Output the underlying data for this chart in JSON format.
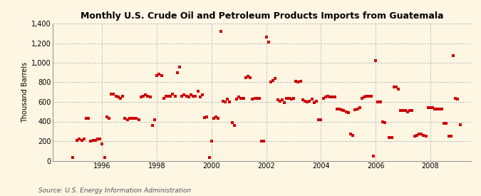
{
  "title": "Monthly U.S. Crude Oil and Petroleum Products Imports from Guatemala",
  "ylabel": "Thousand Barrels",
  "source": "Source: U.S. Energy Information Administration",
  "background_color": "#fdf6e3",
  "plot_bg_color": "#fdf6e3",
  "marker_color": "#cc0000",
  "marker_size": 3,
  "ylim": [
    0,
    1400
  ],
  "yticks": [
    0,
    200,
    400,
    600,
    800,
    1000,
    1200,
    1400
  ],
  "xlim_start": 1994.2,
  "xlim_end": 2009.5,
  "xticks": [
    1996,
    1998,
    2000,
    2002,
    2004,
    2006,
    2008
  ],
  "data": [
    [
      1994.9167,
      30
    ],
    [
      1995.0833,
      210
    ],
    [
      1995.1667,
      220
    ],
    [
      1995.25,
      210
    ],
    [
      1995.3333,
      220
    ],
    [
      1995.4167,
      430
    ],
    [
      1995.5,
      430
    ],
    [
      1995.5833,
      200
    ],
    [
      1995.6667,
      210
    ],
    [
      1995.75,
      210
    ],
    [
      1995.8333,
      220
    ],
    [
      1995.9167,
      220
    ],
    [
      1996.0,
      170
    ],
    [
      1996.0833,
      30
    ],
    [
      1996.1667,
      450
    ],
    [
      1996.25,
      430
    ],
    [
      1996.3333,
      680
    ],
    [
      1996.4167,
      680
    ],
    [
      1996.5,
      660
    ],
    [
      1996.5833,
      650
    ],
    [
      1996.6667,
      640
    ],
    [
      1996.75,
      660
    ],
    [
      1996.8333,
      430
    ],
    [
      1996.9167,
      420
    ],
    [
      1997.0,
      430
    ],
    [
      1997.0833,
      430
    ],
    [
      1997.1667,
      430
    ],
    [
      1997.25,
      430
    ],
    [
      1997.3333,
      420
    ],
    [
      1997.4167,
      650
    ],
    [
      1997.5,
      660
    ],
    [
      1997.5833,
      670
    ],
    [
      1997.6667,
      660
    ],
    [
      1997.75,
      650
    ],
    [
      1997.8333,
      360
    ],
    [
      1997.9167,
      420
    ],
    [
      1998.0,
      870
    ],
    [
      1998.0833,
      880
    ],
    [
      1998.1667,
      870
    ],
    [
      1998.25,
      640
    ],
    [
      1998.3333,
      660
    ],
    [
      1998.4167,
      660
    ],
    [
      1998.5,
      660
    ],
    [
      1998.5833,
      680
    ],
    [
      1998.6667,
      660
    ],
    [
      1998.75,
      900
    ],
    [
      1998.8333,
      960
    ],
    [
      1998.9167,
      660
    ],
    [
      1999.0,
      670
    ],
    [
      1999.0833,
      660
    ],
    [
      1999.1667,
      650
    ],
    [
      1999.25,
      670
    ],
    [
      1999.3333,
      660
    ],
    [
      1999.4167,
      660
    ],
    [
      1999.5,
      710
    ],
    [
      1999.5833,
      650
    ],
    [
      1999.6667,
      670
    ],
    [
      1999.75,
      440
    ],
    [
      1999.8333,
      450
    ],
    [
      1999.9167,
      30
    ],
    [
      2000.0,
      200
    ],
    [
      2000.0833,
      430
    ],
    [
      2000.1667,
      450
    ],
    [
      2000.25,
      430
    ],
    [
      2000.3333,
      1320
    ],
    [
      2000.4167,
      610
    ],
    [
      2000.5,
      600
    ],
    [
      2000.5833,
      630
    ],
    [
      2000.6667,
      600
    ],
    [
      2000.75,
      390
    ],
    [
      2000.8333,
      360
    ],
    [
      2000.9167,
      630
    ],
    [
      2001.0,
      650
    ],
    [
      2001.0833,
      640
    ],
    [
      2001.1667,
      640
    ],
    [
      2001.25,
      850
    ],
    [
      2001.3333,
      860
    ],
    [
      2001.4167,
      850
    ],
    [
      2001.5,
      630
    ],
    [
      2001.5833,
      640
    ],
    [
      2001.6667,
      640
    ],
    [
      2001.75,
      640
    ],
    [
      2001.8333,
      200
    ],
    [
      2001.9167,
      200
    ],
    [
      2002.0,
      1260
    ],
    [
      2002.0833,
      1210
    ],
    [
      2002.1667,
      800
    ],
    [
      2002.25,
      820
    ],
    [
      2002.3333,
      840
    ],
    [
      2002.4167,
      620
    ],
    [
      2002.5,
      610
    ],
    [
      2002.5833,
      620
    ],
    [
      2002.6667,
      590
    ],
    [
      2002.75,
      640
    ],
    [
      2002.8333,
      640
    ],
    [
      2002.9167,
      630
    ],
    [
      2003.0,
      640
    ],
    [
      2003.0833,
      810
    ],
    [
      2003.1667,
      800
    ],
    [
      2003.25,
      810
    ],
    [
      2003.3333,
      620
    ],
    [
      2003.4167,
      610
    ],
    [
      2003.5,
      600
    ],
    [
      2003.5833,
      610
    ],
    [
      2003.6667,
      630
    ],
    [
      2003.75,
      590
    ],
    [
      2003.8333,
      610
    ],
    [
      2003.9167,
      420
    ],
    [
      2004.0,
      420
    ],
    [
      2004.0833,
      640
    ],
    [
      2004.1667,
      650
    ],
    [
      2004.25,
      660
    ],
    [
      2004.3333,
      650
    ],
    [
      2004.4167,
      650
    ],
    [
      2004.5,
      650
    ],
    [
      2004.5833,
      530
    ],
    [
      2004.6667,
      530
    ],
    [
      2004.75,
      520
    ],
    [
      2004.8333,
      510
    ],
    [
      2004.9167,
      500
    ],
    [
      2005.0,
      490
    ],
    [
      2005.0833,
      270
    ],
    [
      2005.1667,
      260
    ],
    [
      2005.25,
      520
    ],
    [
      2005.3333,
      530
    ],
    [
      2005.4167,
      540
    ],
    [
      2005.5,
      640
    ],
    [
      2005.5833,
      650
    ],
    [
      2005.6667,
      660
    ],
    [
      2005.75,
      660
    ],
    [
      2005.8333,
      660
    ],
    [
      2005.9167,
      50
    ],
    [
      2006.0,
      1020
    ],
    [
      2006.0833,
      600
    ],
    [
      2006.1667,
      600
    ],
    [
      2006.25,
      400
    ],
    [
      2006.3333,
      390
    ],
    [
      2006.5,
      240
    ],
    [
      2006.5833,
      240
    ],
    [
      2006.6667,
      750
    ],
    [
      2006.75,
      750
    ],
    [
      2006.8333,
      730
    ],
    [
      2006.9167,
      510
    ],
    [
      2007.0,
      510
    ],
    [
      2007.0833,
      510
    ],
    [
      2007.1667,
      500
    ],
    [
      2007.25,
      510
    ],
    [
      2007.3333,
      510
    ],
    [
      2007.4167,
      250
    ],
    [
      2007.5,
      260
    ],
    [
      2007.5833,
      270
    ],
    [
      2007.6667,
      270
    ],
    [
      2007.75,
      260
    ],
    [
      2007.8333,
      250
    ],
    [
      2007.9167,
      540
    ],
    [
      2008.0,
      540
    ],
    [
      2008.0833,
      540
    ],
    [
      2008.1667,
      530
    ],
    [
      2008.25,
      530
    ],
    [
      2008.3333,
      530
    ],
    [
      2008.4167,
      530
    ],
    [
      2008.5,
      380
    ],
    [
      2008.5833,
      380
    ],
    [
      2008.6667,
      250
    ],
    [
      2008.75,
      250
    ],
    [
      2008.8333,
      1070
    ],
    [
      2008.9167,
      640
    ],
    [
      2009.0,
      630
    ],
    [
      2009.0833,
      370
    ]
  ]
}
